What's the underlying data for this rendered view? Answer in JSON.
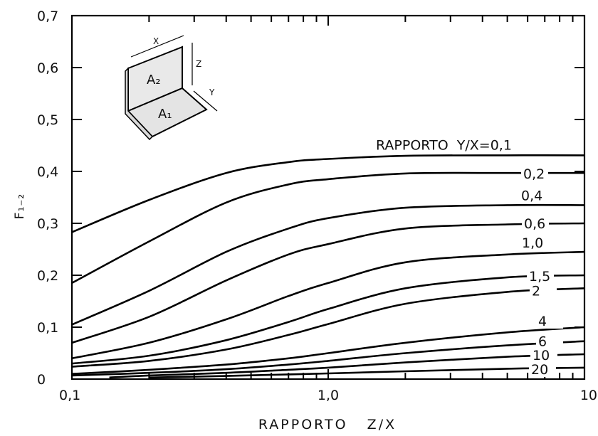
{
  "chart_data": {
    "type": "line",
    "xlabel": "RAPPORTO   Z/X",
    "ylabel": "F₁₋₂",
    "x_scale": "log",
    "xlim": [
      0.1,
      10
    ],
    "ylim": [
      0,
      0.7
    ],
    "x_ticks": [
      0.1,
      1.0,
      10
    ],
    "x_tick_labels": [
      "0,1",
      "1,0",
      "10"
    ],
    "y_ticks": [
      0,
      0.1,
      0.2,
      0.3,
      0.4,
      0.5,
      0.6,
      0.7
    ],
    "y_tick_labels": [
      "0",
      "0,1",
      "0,2",
      "0,3",
      "0,4",
      "0,5",
      "0,6",
      "0,7"
    ],
    "grid": false,
    "legend": "none",
    "series": [
      {
        "name": "RAPPORTO  Y/X=0,1",
        "x": [
          0.1,
          0.2,
          0.4,
          0.7,
          1.0,
          2.0,
          5.0,
          10
        ],
        "y": [
          0.283,
          0.345,
          0.397,
          0.418,
          0.424,
          0.43,
          0.431,
          0.431
        ]
      },
      {
        "name": "0,2",
        "x": [
          0.1,
          0.2,
          0.4,
          0.7,
          1.0,
          2.0,
          5.0,
          10
        ],
        "y": [
          0.185,
          0.265,
          0.34,
          0.375,
          0.385,
          0.396,
          0.397,
          0.397
        ]
      },
      {
        "name": "0,4",
        "x": [
          0.1,
          0.2,
          0.4,
          0.7,
          1.0,
          2.0,
          5.0,
          10
        ],
        "y": [
          0.105,
          0.17,
          0.245,
          0.29,
          0.31,
          0.33,
          0.335,
          0.335
        ]
      },
      {
        "name": "0,6",
        "x": [
          0.1,
          0.2,
          0.4,
          0.7,
          1.0,
          2.0,
          5.0,
          10
        ],
        "y": [
          0.07,
          0.12,
          0.19,
          0.24,
          0.26,
          0.29,
          0.298,
          0.3
        ]
      },
      {
        "name": "1,0",
        "x": [
          0.1,
          0.2,
          0.4,
          0.7,
          1.0,
          2.0,
          5.0,
          10
        ],
        "y": [
          0.04,
          0.07,
          0.115,
          0.16,
          0.185,
          0.225,
          0.24,
          0.245
        ]
      },
      {
        "name": "1,5",
        "x": [
          0.1,
          0.2,
          0.4,
          0.7,
          1.0,
          2.0,
          5.0,
          10
        ],
        "y": [
          0.03,
          0.045,
          0.075,
          0.11,
          0.135,
          0.175,
          0.196,
          0.2
        ]
      },
      {
        "name": "2",
        "x": [
          0.1,
          0.2,
          0.4,
          0.7,
          1.0,
          2.0,
          5.0,
          10
        ],
        "y": [
          0.024,
          0.035,
          0.057,
          0.085,
          0.106,
          0.145,
          0.168,
          0.175
        ]
      },
      {
        "name": "4",
        "x": [
          0.1,
          0.2,
          0.4,
          0.7,
          1.0,
          2.0,
          5.0,
          10
        ],
        "y": [
          0.01,
          0.018,
          0.028,
          0.04,
          0.05,
          0.07,
          0.09,
          0.1
        ]
      },
      {
        "name": "6",
        "x": [
          0.1,
          0.2,
          0.4,
          0.7,
          1.0,
          2.0,
          5.0,
          10
        ],
        "y": [
          0.007,
          0.012,
          0.019,
          0.028,
          0.035,
          0.05,
          0.065,
          0.073
        ]
      },
      {
        "name": "10",
        "x": [
          0.14,
          0.2,
          0.4,
          0.7,
          1.0,
          2.0,
          5.0,
          10
        ],
        "y": [
          0.003,
          0.007,
          0.012,
          0.018,
          0.022,
          0.032,
          0.043,
          0.048
        ]
      },
      {
        "name": "20",
        "x": [
          0.2,
          0.4,
          0.7,
          1.0,
          2.0,
          5.0,
          10
        ],
        "y": [
          0.003,
          0.006,
          0.009,
          0.011,
          0.015,
          0.02,
          0.022
        ]
      }
    ],
    "inset_labels": {
      "a2": "A₂",
      "a1": "A₁",
      "x": "X",
      "y": "Y",
      "z": "Z"
    }
  }
}
